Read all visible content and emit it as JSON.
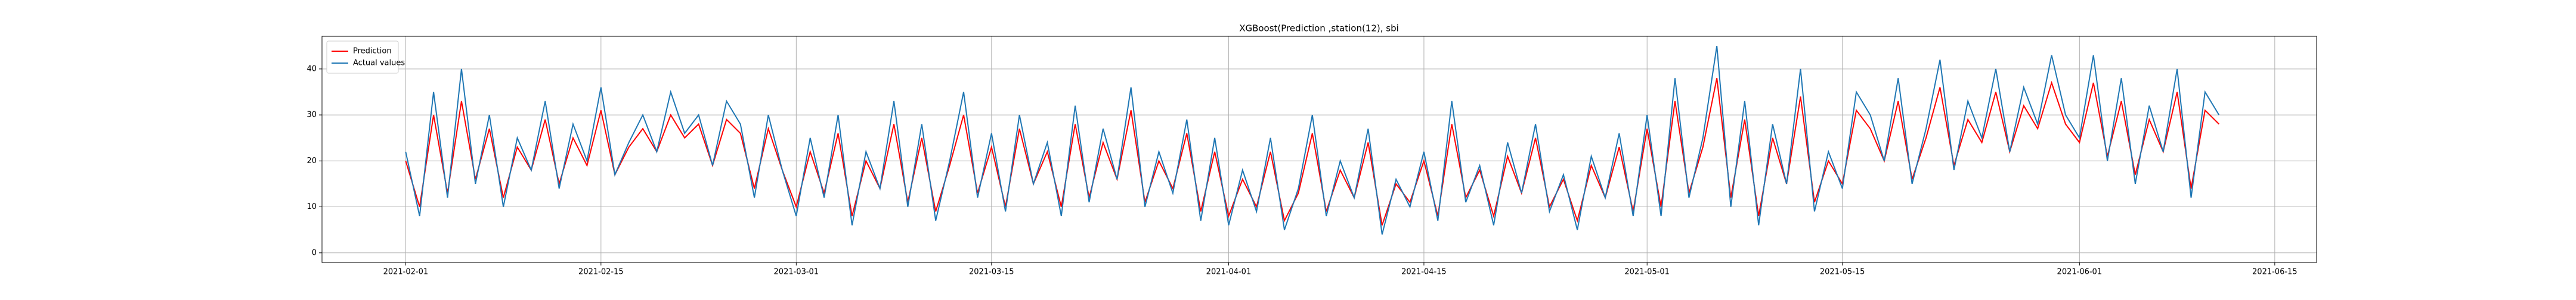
{
  "chart_data": {
    "type": "line",
    "title": "XGBoost(Prediction ,station(12), sbi",
    "x": [
      "2021-02-01",
      "2021-02-02",
      "2021-02-03",
      "2021-02-04",
      "2021-02-05",
      "2021-02-06",
      "2021-02-07",
      "2021-02-08",
      "2021-02-09",
      "2021-02-10",
      "2021-02-11",
      "2021-02-12",
      "2021-02-13",
      "2021-02-14",
      "2021-02-15",
      "2021-02-16",
      "2021-02-17",
      "2021-02-18",
      "2021-02-19",
      "2021-02-20",
      "2021-02-21",
      "2021-02-22",
      "2021-02-23",
      "2021-02-24",
      "2021-02-25",
      "2021-02-26",
      "2021-02-27",
      "2021-02-28",
      "2021-03-01",
      "2021-03-02",
      "2021-03-03",
      "2021-03-04",
      "2021-03-05",
      "2021-03-06",
      "2021-03-07",
      "2021-03-08",
      "2021-03-09",
      "2021-03-10",
      "2021-03-11",
      "2021-03-12",
      "2021-03-13",
      "2021-03-14",
      "2021-03-15",
      "2021-03-16",
      "2021-03-17",
      "2021-03-18",
      "2021-03-19",
      "2021-03-20",
      "2021-03-21",
      "2021-03-22",
      "2021-03-23",
      "2021-03-24",
      "2021-03-25",
      "2021-03-26",
      "2021-03-27",
      "2021-03-28",
      "2021-03-29",
      "2021-03-30",
      "2021-03-31",
      "2021-04-01",
      "2021-04-02",
      "2021-04-03",
      "2021-04-04",
      "2021-04-05",
      "2021-04-06",
      "2021-04-07",
      "2021-04-08",
      "2021-04-09",
      "2021-04-10",
      "2021-04-11",
      "2021-04-12",
      "2021-04-13",
      "2021-04-14",
      "2021-04-15",
      "2021-04-16",
      "2021-04-17",
      "2021-04-18",
      "2021-04-19",
      "2021-04-20",
      "2021-04-21",
      "2021-04-22",
      "2021-04-23",
      "2021-04-24",
      "2021-04-25",
      "2021-04-26",
      "2021-04-27",
      "2021-04-28",
      "2021-04-29",
      "2021-04-30",
      "2021-05-01",
      "2021-05-02",
      "2021-05-03",
      "2021-05-04",
      "2021-05-05",
      "2021-05-06",
      "2021-05-07",
      "2021-05-08",
      "2021-05-09",
      "2021-05-10",
      "2021-05-11",
      "2021-05-12",
      "2021-05-13",
      "2021-05-14",
      "2021-05-15",
      "2021-05-16",
      "2021-05-17",
      "2021-05-18",
      "2021-05-19",
      "2021-05-20",
      "2021-05-21",
      "2021-05-22",
      "2021-05-23",
      "2021-05-24",
      "2021-05-25",
      "2021-05-26",
      "2021-05-27",
      "2021-05-28",
      "2021-05-29",
      "2021-05-30",
      "2021-05-31",
      "2021-06-01",
      "2021-06-02",
      "2021-06-03",
      "2021-06-04",
      "2021-06-05",
      "2021-06-06",
      "2021-06-07",
      "2021-06-08",
      "2021-06-09",
      "2021-06-10",
      "2021-06-11"
    ],
    "series": [
      {
        "name": "Prediction",
        "color": "#ff0000",
        "values": [
          20,
          10,
          30,
          13,
          33,
          16,
          27,
          12,
          23,
          18,
          29,
          15,
          25,
          19,
          31,
          17,
          23,
          27,
          22,
          30,
          25,
          28,
          19,
          29,
          26,
          14,
          27,
          18,
          10,
          22,
          13,
          26,
          8,
          20,
          14,
          28,
          11,
          25,
          9,
          19,
          30,
          13,
          23,
          10,
          27,
          15,
          22,
          10,
          28,
          12,
          24,
          16,
          31,
          11,
          20,
          14,
          26,
          9,
          22,
          8,
          16,
          10,
          22,
          7,
          13,
          26,
          9,
          18,
          12,
          24,
          6,
          15,
          11,
          20,
          8,
          28,
          12,
          18,
          8,
          21,
          13,
          25,
          10,
          16,
          7,
          19,
          12,
          23,
          9,
          27,
          10,
          33,
          13,
          23,
          38,
          12,
          29,
          8,
          25,
          15,
          34,
          11,
          20,
          15,
          31,
          27,
          20,
          33,
          16,
          25,
          36,
          19,
          29,
          24,
          35,
          22,
          32,
          27,
          37,
          28,
          24,
          37,
          21,
          33,
          17,
          29,
          22,
          35,
          14,
          31,
          28
        ]
      },
      {
        "name": "Actual values",
        "color": "#1f77b4",
        "values": [
          22,
          8,
          35,
          12,
          40,
          15,
          30,
          10,
          25,
          18,
          33,
          14,
          28,
          20,
          36,
          17,
          24,
          30,
          22,
          35,
          26,
          30,
          19,
          33,
          28,
          12,
          30,
          18,
          8,
          25,
          12,
          30,
          6,
          22,
          14,
          33,
          10,
          28,
          7,
          20,
          35,
          12,
          26,
          9,
          30,
          15,
          24,
          8,
          32,
          11,
          27,
          16,
          36,
          10,
          22,
          13,
          29,
          7,
          25,
          6,
          18,
          9,
          25,
          5,
          14,
          30,
          8,
          20,
          12,
          27,
          4,
          16,
          10,
          22,
          7,
          33,
          11,
          19,
          6,
          24,
          13,
          28,
          9,
          17,
          5,
          21,
          12,
          26,
          8,
          30,
          8,
          38,
          12,
          25,
          45,
          10,
          33,
          6,
          28,
          15,
          40,
          9,
          22,
          14,
          35,
          30,
          20,
          38,
          15,
          27,
          42,
          18,
          33,
          25,
          40,
          22,
          36,
          28,
          43,
          30,
          25,
          43,
          20,
          38,
          15,
          32,
          22,
          40,
          12,
          35,
          30
        ]
      }
    ],
    "xlim": [
      "2021-01-26",
      "2021-06-18"
    ],
    "xticks": [
      "2021-02-01",
      "2021-02-15",
      "2021-03-01",
      "2021-03-15",
      "2021-04-01",
      "2021-04-15",
      "2021-05-01",
      "2021-05-15",
      "2021-06-01",
      "2021-06-15"
    ],
    "ylim": [
      -2.1,
      47.1
    ],
    "yticks": [
      0,
      10,
      20,
      30,
      40
    ],
    "grid": true,
    "legend": "upper left"
  }
}
